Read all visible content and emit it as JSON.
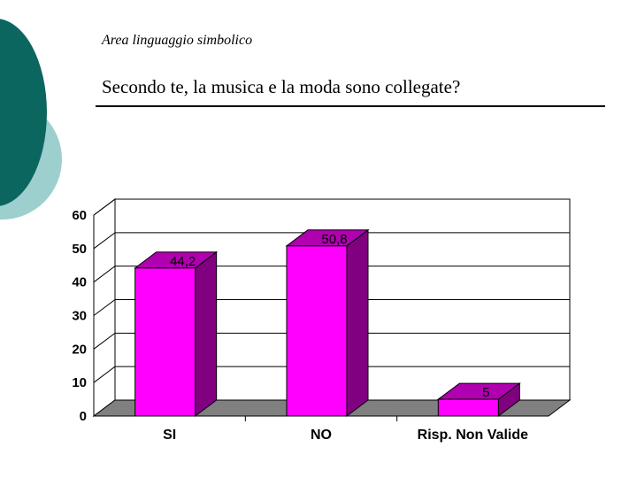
{
  "slide": {
    "subtitle": "Area linguaggio simbolico",
    "title": "Secondo te, la musica e la moda sono collegate?"
  },
  "colors": {
    "decor_dark": "#0b6660",
    "decor_light": "#9ecfcf",
    "bar_front": "#ff00ff",
    "bar_side": "#800080",
    "bar_top": "#b000b0",
    "floor": "#808080"
  },
  "chart_data": {
    "type": "bar",
    "categories": [
      "SI",
      "NO",
      "Risp. Non Valide"
    ],
    "values": [
      44.2,
      50.8,
      5
    ],
    "data_labels": [
      "44,2",
      "50,8",
      "5"
    ],
    "ylim": [
      0,
      60
    ],
    "yticks": [
      "0",
      "10",
      "20",
      "30",
      "40",
      "50",
      "60"
    ],
    "grid": true,
    "three_d": true,
    "legend": "none"
  }
}
